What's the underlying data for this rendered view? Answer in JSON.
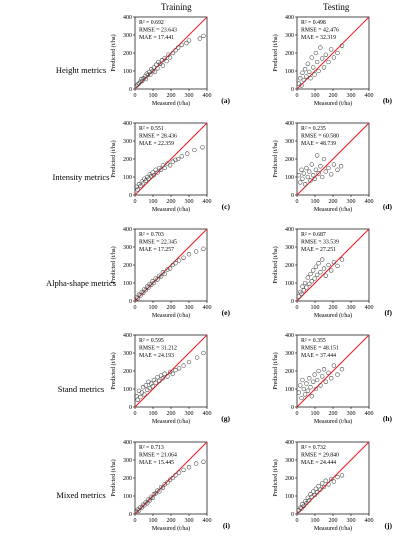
{
  "columns": [
    "Training",
    "Testing"
  ],
  "rows": [
    "Height metrics",
    "Intensity metrics",
    "Alpha-shape metrics",
    "Stand metrics",
    "Mixed metrics"
  ],
  "axes": {
    "xlabel": "Measured (t/ha)",
    "ylabel": "Predicted (t/ha)",
    "xticks": [
      "0",
      "100",
      "200",
      "300",
      "400"
    ],
    "yticks": [
      "0",
      "100",
      "200",
      "300",
      "400"
    ]
  },
  "colors": {
    "one_to_one_line": "#e8232a",
    "markers": "#444444"
  },
  "chart_data": [
    {
      "panel": "(a)",
      "type": "scatter",
      "xlim": [
        0,
        400
      ],
      "ylim": [
        0,
        400
      ],
      "stats": [
        "R² = 0.692",
        "RMSE = 23.643",
        "MAE = 17.441"
      ],
      "points": [
        [
          8,
          18
        ],
        [
          15,
          25
        ],
        [
          22,
          30
        ],
        [
          30,
          40
        ],
        [
          35,
          55
        ],
        [
          40,
          45
        ],
        [
          48,
          60
        ],
        [
          55,
          70
        ],
        [
          60,
          55
        ],
        [
          65,
          85
        ],
        [
          72,
          78
        ],
        [
          80,
          95
        ],
        [
          85,
          80
        ],
        [
          90,
          110
        ],
        [
          98,
          100
        ],
        [
          105,
          120
        ],
        [
          110,
          95
        ],
        [
          118,
          135
        ],
        [
          125,
          115
        ],
        [
          130,
          150
        ],
        [
          140,
          140
        ],
        [
          150,
          160
        ],
        [
          155,
          130
        ],
        [
          165,
          170
        ],
        [
          175,
          155
        ],
        [
          185,
          190
        ],
        [
          195,
          175
        ],
        [
          210,
          200
        ],
        [
          225,
          215
        ],
        [
          240,
          230
        ],
        [
          260,
          245
        ],
        [
          285,
          255
        ],
        [
          300,
          270
        ],
        [
          360,
          280
        ],
        [
          380,
          295
        ]
      ]
    },
    {
      "panel": "(b)",
      "type": "scatter",
      "xlim": [
        0,
        400
      ],
      "ylim": [
        0,
        400
      ],
      "stats": [
        "R² = 0.498",
        "RMSE = 42.476",
        "MAE = 32.319"
      ],
      "points": [
        [
          10,
          30
        ],
        [
          18,
          60
        ],
        [
          25,
          20
        ],
        [
          30,
          90
        ],
        [
          38,
          50
        ],
        [
          45,
          110
        ],
        [
          52,
          70
        ],
        [
          60,
          140
        ],
        [
          68,
          95
        ],
        [
          75,
          60
        ],
        [
          82,
          175
        ],
        [
          90,
          120
        ],
        [
          98,
          80
        ],
        [
          105,
          200
        ],
        [
          112,
          150
        ],
        [
          120,
          100
        ],
        [
          130,
          230
        ],
        [
          140,
          170
        ],
        [
          150,
          120
        ],
        [
          160,
          190
        ],
        [
          175,
          150
        ],
        [
          190,
          220
        ],
        [
          205,
          175
        ],
        [
          225,
          200
        ],
        [
          250,
          240
        ]
      ]
    },
    {
      "panel": "(c)",
      "type": "scatter",
      "xlim": [
        0,
        400
      ],
      "ylim": [
        0,
        400
      ],
      "stats": [
        "R² = 0.551",
        "RMSE = 28.436",
        "MAE = 22.359"
      ],
      "points": [
        [
          8,
          45
        ],
        [
          15,
          30
        ],
        [
          22,
          60
        ],
        [
          30,
          50
        ],
        [
          38,
          75
        ],
        [
          45,
          65
        ],
        [
          52,
          90
        ],
        [
          60,
          80
        ],
        [
          68,
          100
        ],
        [
          75,
          90
        ],
        [
          82,
          115
        ],
        [
          90,
          105
        ],
        [
          98,
          125
        ],
        [
          105,
          110
        ],
        [
          115,
          140
        ],
        [
          125,
          125
        ],
        [
          135,
          150
        ],
        [
          145,
          140
        ],
        [
          155,
          165
        ],
        [
          165,
          150
        ],
        [
          180,
          175
        ],
        [
          195,
          165
        ],
        [
          210,
          185
        ],
        [
          225,
          195
        ],
        [
          240,
          200
        ],
        [
          260,
          215
        ],
        [
          290,
          230
        ],
        [
          330,
          250
        ],
        [
          375,
          265
        ]
      ]
    },
    {
      "panel": "(d)",
      "type": "scatter",
      "xlim": [
        0,
        400
      ],
      "ylim": [
        0,
        400
      ],
      "stats": [
        "R² = 0.235",
        "RMSE = 60.580",
        "MAE = 48.739"
      ],
      "points": [
        [
          10,
          110
        ],
        [
          18,
          70
        ],
        [
          25,
          140
        ],
        [
          30,
          90
        ],
        [
          38,
          120
        ],
        [
          45,
          60
        ],
        [
          52,
          150
        ],
        [
          60,
          100
        ],
        [
          68,
          130
        ],
        [
          75,
          80
        ],
        [
          82,
          170
        ],
        [
          90,
          110
        ],
        [
          98,
          90
        ],
        [
          105,
          140
        ],
        [
          112,
          220
        ],
        [
          120,
          120
        ],
        [
          130,
          160
        ],
        [
          140,
          100
        ],
        [
          150,
          200
        ],
        [
          160,
          130
        ],
        [
          175,
          150
        ],
        [
          190,
          115
        ],
        [
          205,
          170
        ],
        [
          225,
          140
        ],
        [
          245,
          160
        ]
      ]
    },
    {
      "panel": "(e)",
      "type": "scatter",
      "xlim": [
        0,
        400
      ],
      "ylim": [
        0,
        400
      ],
      "stats": [
        "R² = 0.703",
        "RMSE = 22.345",
        "MAE = 17.257"
      ],
      "points": [
        [
          8,
          20
        ],
        [
          15,
          15
        ],
        [
          22,
          35
        ],
        [
          30,
          30
        ],
        [
          38,
          50
        ],
        [
          45,
          45
        ],
        [
          52,
          65
        ],
        [
          60,
          60
        ],
        [
          68,
          80
        ],
        [
          75,
          75
        ],
        [
          82,
          95
        ],
        [
          90,
          90
        ],
        [
          98,
          110
        ],
        [
          105,
          100
        ],
        [
          115,
          125
        ],
        [
          125,
          120
        ],
        [
          135,
          140
        ],
        [
          145,
          135
        ],
        [
          155,
          160
        ],
        [
          165,
          150
        ],
        [
          180,
          175
        ],
        [
          195,
          180
        ],
        [
          210,
          200
        ],
        [
          225,
          210
        ],
        [
          245,
          225
        ],
        [
          270,
          240
        ],
        [
          300,
          260
        ],
        [
          340,
          275
        ],
        [
          380,
          290
        ]
      ]
    },
    {
      "panel": "(f)",
      "type": "scatter",
      "xlim": [
        0,
        400
      ],
      "ylim": [
        0,
        400
      ],
      "stats": [
        "R² = 0.687",
        "RMSE = 33.539",
        "MAE = 27.251"
      ],
      "points": [
        [
          10,
          25
        ],
        [
          18,
          50
        ],
        [
          25,
          40
        ],
        [
          30,
          80
        ],
        [
          38,
          60
        ],
        [
          45,
          100
        ],
        [
          52,
          75
        ],
        [
          60,
          130
        ],
        [
          68,
          95
        ],
        [
          75,
          150
        ],
        [
          82,
          110
        ],
        [
          90,
          170
        ],
        [
          98,
          125
        ],
        [
          105,
          190
        ],
        [
          112,
          145
        ],
        [
          120,
          210
        ],
        [
          130,
          160
        ],
        [
          140,
          230
        ],
        [
          150,
          180
        ],
        [
          160,
          140
        ],
        [
          175,
          200
        ],
        [
          190,
          170
        ],
        [
          205,
          215
        ],
        [
          225,
          195
        ],
        [
          250,
          230
        ]
      ]
    },
    {
      "panel": "(g)",
      "type": "scatter",
      "xlim": [
        0,
        400
      ],
      "ylim": [
        0,
        400
      ],
      "stats": [
        "R² = 0.595",
        "RMSE = 31.212",
        "MAE = 24.193"
      ],
      "points": [
        [
          8,
          60
        ],
        [
          15,
          40
        ],
        [
          22,
          90
        ],
        [
          30,
          55
        ],
        [
          38,
          80
        ],
        [
          45,
          110
        ],
        [
          52,
          70
        ],
        [
          60,
          120
        ],
        [
          68,
          95
        ],
        [
          75,
          140
        ],
        [
          82,
          105
        ],
        [
          90,
          130
        ],
        [
          98,
          115
        ],
        [
          105,
          150
        ],
        [
          115,
          135
        ],
        [
          125,
          165
        ],
        [
          135,
          145
        ],
        [
          145,
          175
        ],
        [
          155,
          160
        ],
        [
          165,
          185
        ],
        [
          180,
          170
        ],
        [
          195,
          195
        ],
        [
          210,
          185
        ],
        [
          225,
          205
        ],
        [
          245,
          215
        ],
        [
          270,
          230
        ],
        [
          300,
          250
        ],
        [
          345,
          275
        ],
        [
          380,
          300
        ]
      ]
    },
    {
      "panel": "(h)",
      "type": "scatter",
      "xlim": [
        0,
        400
      ],
      "ylim": [
        0,
        400
      ],
      "stats": [
        "R² = 0.355",
        "RMSE = 48.151",
        "MAE = 37.444"
      ],
      "points": [
        [
          10,
          80
        ],
        [
          18,
          120
        ],
        [
          25,
          50
        ],
        [
          30,
          150
        ],
        [
          38,
          100
        ],
        [
          45,
          70
        ],
        [
          52,
          130
        ],
        [
          60,
          90
        ],
        [
          68,
          160
        ],
        [
          75,
          110
        ],
        [
          82,
          60
        ],
        [
          90,
          140
        ],
        [
          98,
          180
        ],
        [
          105,
          100
        ],
        [
          112,
          150
        ],
        [
          120,
          200
        ],
        [
          130,
          120
        ],
        [
          140,
          170
        ],
        [
          150,
          210
        ],
        [
          160,
          140
        ],
        [
          175,
          190
        ],
        [
          190,
          160
        ],
        [
          205,
          230
        ],
        [
          225,
          180
        ],
        [
          250,
          210
        ]
      ]
    },
    {
      "panel": "(i)",
      "type": "scatter",
      "xlim": [
        0,
        400
      ],
      "ylim": [
        0,
        400
      ],
      "stats": [
        "R² = 0.713",
        "RMSE = 21.064",
        "MAE = 15.445"
      ],
      "points": [
        [
          8,
          12
        ],
        [
          15,
          25
        ],
        [
          22,
          20
        ],
        [
          30,
          38
        ],
        [
          38,
          35
        ],
        [
          45,
          52
        ],
        [
          52,
          48
        ],
        [
          60,
          66
        ],
        [
          68,
          60
        ],
        [
          75,
          80
        ],
        [
          82,
          75
        ],
        [
          90,
          95
        ],
        [
          98,
          90
        ],
        [
          105,
          110
        ],
        [
          115,
          115
        ],
        [
          125,
          130
        ],
        [
          135,
          125
        ],
        [
          145,
          150
        ],
        [
          155,
          145
        ],
        [
          165,
          165
        ],
        [
          180,
          175
        ],
        [
          195,
          190
        ],
        [
          210,
          200
        ],
        [
          225,
          215
        ],
        [
          245,
          230
        ],
        [
          270,
          245
        ],
        [
          300,
          260
        ],
        [
          340,
          280
        ],
        [
          380,
          290
        ]
      ]
    },
    {
      "panel": "(j)",
      "type": "scatter",
      "xlim": [
        0,
        400
      ],
      "ylim": [
        0,
        400
      ],
      "stats": [
        "R² = 0.732",
        "RMSE = 29.840",
        "MAE = 24.444"
      ],
      "points": [
        [
          10,
          20
        ],
        [
          18,
          35
        ],
        [
          25,
          30
        ],
        [
          30,
          55
        ],
        [
          38,
          45
        ],
        [
          45,
          70
        ],
        [
          52,
          60
        ],
        [
          60,
          90
        ],
        [
          68,
          75
        ],
        [
          75,
          110
        ],
        [
          82,
          95
        ],
        [
          90,
          125
        ],
        [
          98,
          105
        ],
        [
          105,
          140
        ],
        [
          112,
          120
        ],
        [
          120,
          155
        ],
        [
          130,
          135
        ],
        [
          140,
          170
        ],
        [
          150,
          150
        ],
        [
          160,
          185
        ],
        [
          175,
          165
        ],
        [
          190,
          195
        ],
        [
          205,
          180
        ],
        [
          225,
          205
        ],
        [
          250,
          215
        ]
      ]
    }
  ]
}
